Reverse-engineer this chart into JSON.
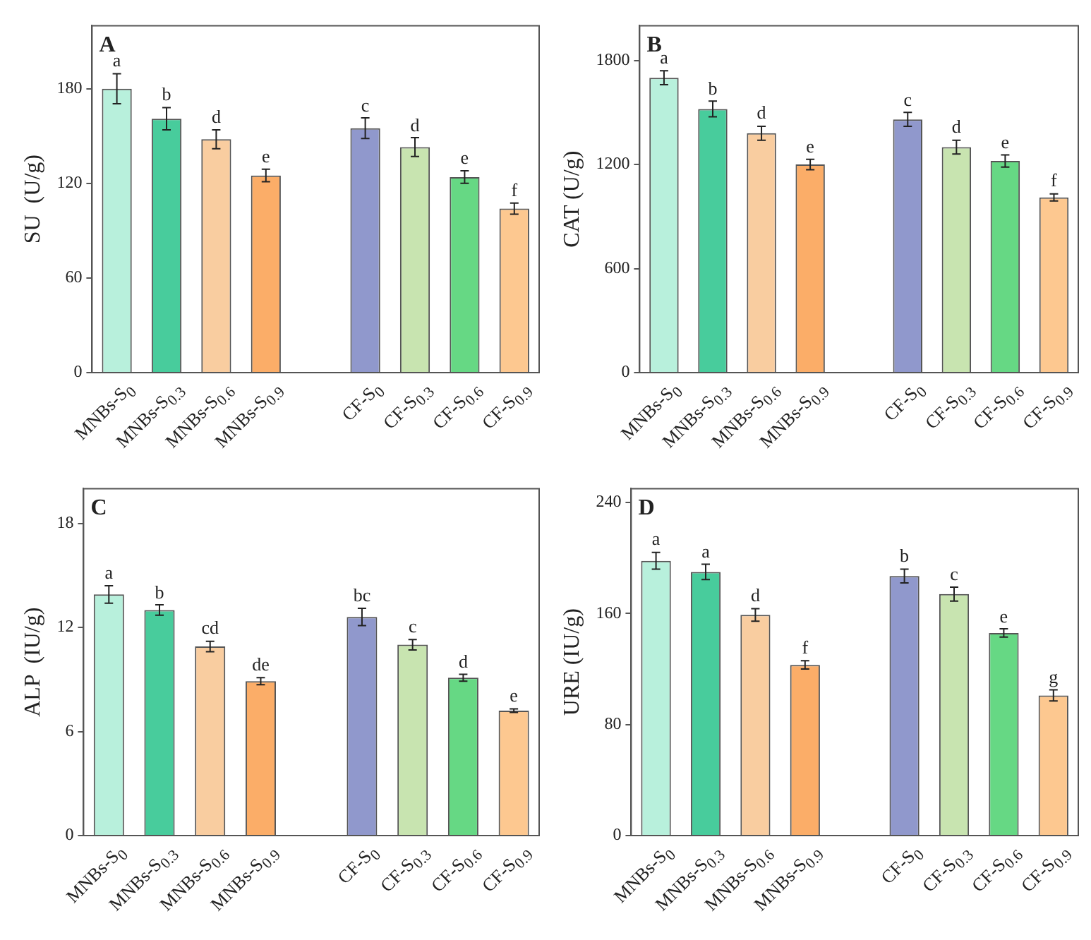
{
  "chart_data": [
    {
      "type": "bar",
      "title": "A",
      "ylabel": "SU  (U/g)",
      "categories": [
        "MNBs-S$_{0}$",
        "MNBs-S$_{0.3}$",
        "MNBs-S$_{0.6}$",
        "MNBs-S$_{0.9}$",
        null,
        "CF-S$_{0}$",
        "CF-S$_{0.3}$",
        "CF-S$_{0.6}$",
        "CF-S$_{0.9}$"
      ],
      "values": [
        180,
        161,
        148,
        125,
        null,
        155,
        143,
        124,
        104
      ],
      "errors": [
        9.5,
        7,
        6,
        4,
        null,
        6.5,
        6,
        4,
        3.5
      ],
      "colors": [
        "#b8f0dc",
        "#48cc9c",
        "#f9cda0",
        "#fbad68",
        "#ffffff",
        "#9098cc",
        "#c8e4b0",
        "#66d884",
        "#fdc890"
      ],
      "ylim": [
        0,
        220
      ],
      "yticks": [
        0,
        60,
        120,
        180
      ],
      "grid": false,
      "legend": false,
      "annotations": [
        {
          "text": "a",
          "x": "MNBs-S$_{0}$",
          "y": 180
        },
        {
          "text": "b",
          "x": "MNBs-S$_{0.3}$",
          "y": 161
        },
        {
          "text": "d",
          "x": "MNBs-S$_{0.6}$",
          "y": 148
        },
        {
          "text": "e",
          "x": "MNBs-S$_{0.9}$",
          "y": 125
        },
        {
          "text": "c",
          "x": "CF-S$_{0}$",
          "y": 155
        },
        {
          "text": "d",
          "x": "CF-S$_{0.3}$",
          "y": 143
        },
        {
          "text": "e",
          "x": "CF-S$_{0.6}$",
          "y": 124
        },
        {
          "text": "f",
          "x": "CF-S$_{0.9}$",
          "y": 104
        }
      ]
    },
    {
      "type": "bar",
      "title": "B",
      "ylabel": "CAT (U/g)",
      "categories": [
        "MNBs-S$_{0}$",
        "MNBs-S$_{0.3}$",
        "MNBs-S$_{0.6}$",
        "MNBs-S$_{0.9}$",
        null,
        "CF-S$_{0}$",
        "CF-S$_{0.3}$",
        "CF-S$_{0.6}$",
        "CF-S$_{0.9}$"
      ],
      "values": [
        1700,
        1520,
        1380,
        1200,
        null,
        1460,
        1300,
        1220,
        1010
      ],
      "errors": [
        40,
        45,
        40,
        30,
        null,
        40,
        40,
        35,
        20
      ],
      "colors": [
        "#b8f0dc",
        "#48cc9c",
        "#f9cda0",
        "#fbad68",
        "#ffffff",
        "#9098cc",
        "#c8e4b0",
        "#66d884",
        "#fdc890"
      ],
      "ylim": [
        0,
        2000
      ],
      "yticks": [
        0,
        600,
        1200,
        1800
      ],
      "grid": false,
      "legend": false,
      "annotations": [
        {
          "text": "a",
          "x": "MNBs-S$_{0}$",
          "y": 1700
        },
        {
          "text": "b",
          "x": "MNBs-S$_{0.3}$",
          "y": 1520
        },
        {
          "text": "d",
          "x": "MNBs-S$_{0.6}$",
          "y": 1380
        },
        {
          "text": "e",
          "x": "MNBs-S$_{0.9}$",
          "y": 1200
        },
        {
          "text": "c",
          "x": "CF-S$_{0}$",
          "y": 1460
        },
        {
          "text": "d",
          "x": "CF-S$_{0.3}$",
          "y": 1300
        },
        {
          "text": "e",
          "x": "CF-S$_{0.6}$",
          "y": 1220
        },
        {
          "text": "f",
          "x": "CF-S$_{0.9}$",
          "y": 1010
        }
      ]
    },
    {
      "type": "bar",
      "title": "C",
      "ylabel": "ALP  (IU/g)",
      "categories": [
        "MNBs-S$_{0}$",
        "MNBs-S$_{0.3}$",
        "MNBs-S$_{0.6}$",
        "MNBs-S$_{0.9}$",
        null,
        "CF-S$_{0}$",
        "CF-S$_{0.3}$",
        "CF-S$_{0.6}$",
        "CF-S$_{0.9}$"
      ],
      "values": [
        13.9,
        13.0,
        10.9,
        8.9,
        null,
        12.6,
        11.0,
        9.1,
        7.2
      ],
      "errors": [
        0.5,
        0.3,
        0.3,
        0.2,
        null,
        0.5,
        0.3,
        0.2,
        0.1
      ],
      "colors": [
        "#b8f0dc",
        "#48cc9c",
        "#f9cda0",
        "#fbad68",
        "#ffffff",
        "#9098cc",
        "#c8e4b0",
        "#66d884",
        "#fdc890"
      ],
      "ylim": [
        0,
        20
      ],
      "yticks": [
        0,
        6,
        12,
        18
      ],
      "grid": false,
      "legend": false,
      "annotations": [
        {
          "text": "a",
          "x": "MNBs-S$_{0}$",
          "y": 13.9
        },
        {
          "text": "b",
          "x": "MNBs-S$_{0.3}$",
          "y": 13.0
        },
        {
          "text": "cd",
          "x": "MNBs-S$_{0.6}$",
          "y": 10.9
        },
        {
          "text": "de",
          "x": "MNBs-S$_{0.9}$",
          "y": 8.9
        },
        {
          "text": "bc",
          "x": "CF-S$_{0}$",
          "y": 12.6
        },
        {
          "text": "c",
          "x": "CF-S$_{0.3}$",
          "y": 11.0
        },
        {
          "text": "d",
          "x": "CF-S$_{0.6}$",
          "y": 9.1
        },
        {
          "text": "e",
          "x": "CF-S$_{0.9}$",
          "y": 7.2
        }
      ]
    },
    {
      "type": "bar",
      "title": "D",
      "ylabel": "URE (IU/g)",
      "categories": [
        "MNBs-S$_{0}$",
        "MNBs-S$_{0.3}$",
        "MNBs-S$_{0.6}$",
        "MNBs-S$_{0.9}$",
        null,
        "CF-S$_{0}$",
        "CF-S$_{0.3}$",
        "CF-S$_{0.6}$",
        "CF-S$_{0.9}$"
      ],
      "values": [
        198,
        190,
        159,
        123,
        null,
        187,
        174,
        146,
        101
      ],
      "errors": [
        6,
        5.5,
        4.5,
        3,
        null,
        5,
        5,
        3,
        4
      ],
      "colors": [
        "#b8f0dc",
        "#48cc9c",
        "#f9cda0",
        "#fbad68",
        "#ffffff",
        "#9098cc",
        "#c8e4b0",
        "#66d884",
        "#fdc890"
      ],
      "ylim": [
        0,
        250
      ],
      "yticks": [
        0,
        80,
        160,
        240
      ],
      "grid": false,
      "legend": false,
      "annotations": [
        {
          "text": "a",
          "x": "MNBs-S$_{0}$",
          "y": 198
        },
        {
          "text": "a",
          "x": "MNBs-S$_{0.3}$",
          "y": 190
        },
        {
          "text": "d",
          "x": "MNBs-S$_{0.6}$",
          "y": 159
        },
        {
          "text": "f",
          "x": "MNBs-S$_{0.9}$",
          "y": 123
        },
        {
          "text": "b",
          "x": "CF-S$_{0}$",
          "y": 187
        },
        {
          "text": "c",
          "x": "CF-S$_{0.3}$",
          "y": 174
        },
        {
          "text": "e",
          "x": "CF-S$_{0.6}$",
          "y": 146
        },
        {
          "text": "g",
          "x": "CF-S$_{0.9}$",
          "y": 101
        }
      ]
    }
  ]
}
